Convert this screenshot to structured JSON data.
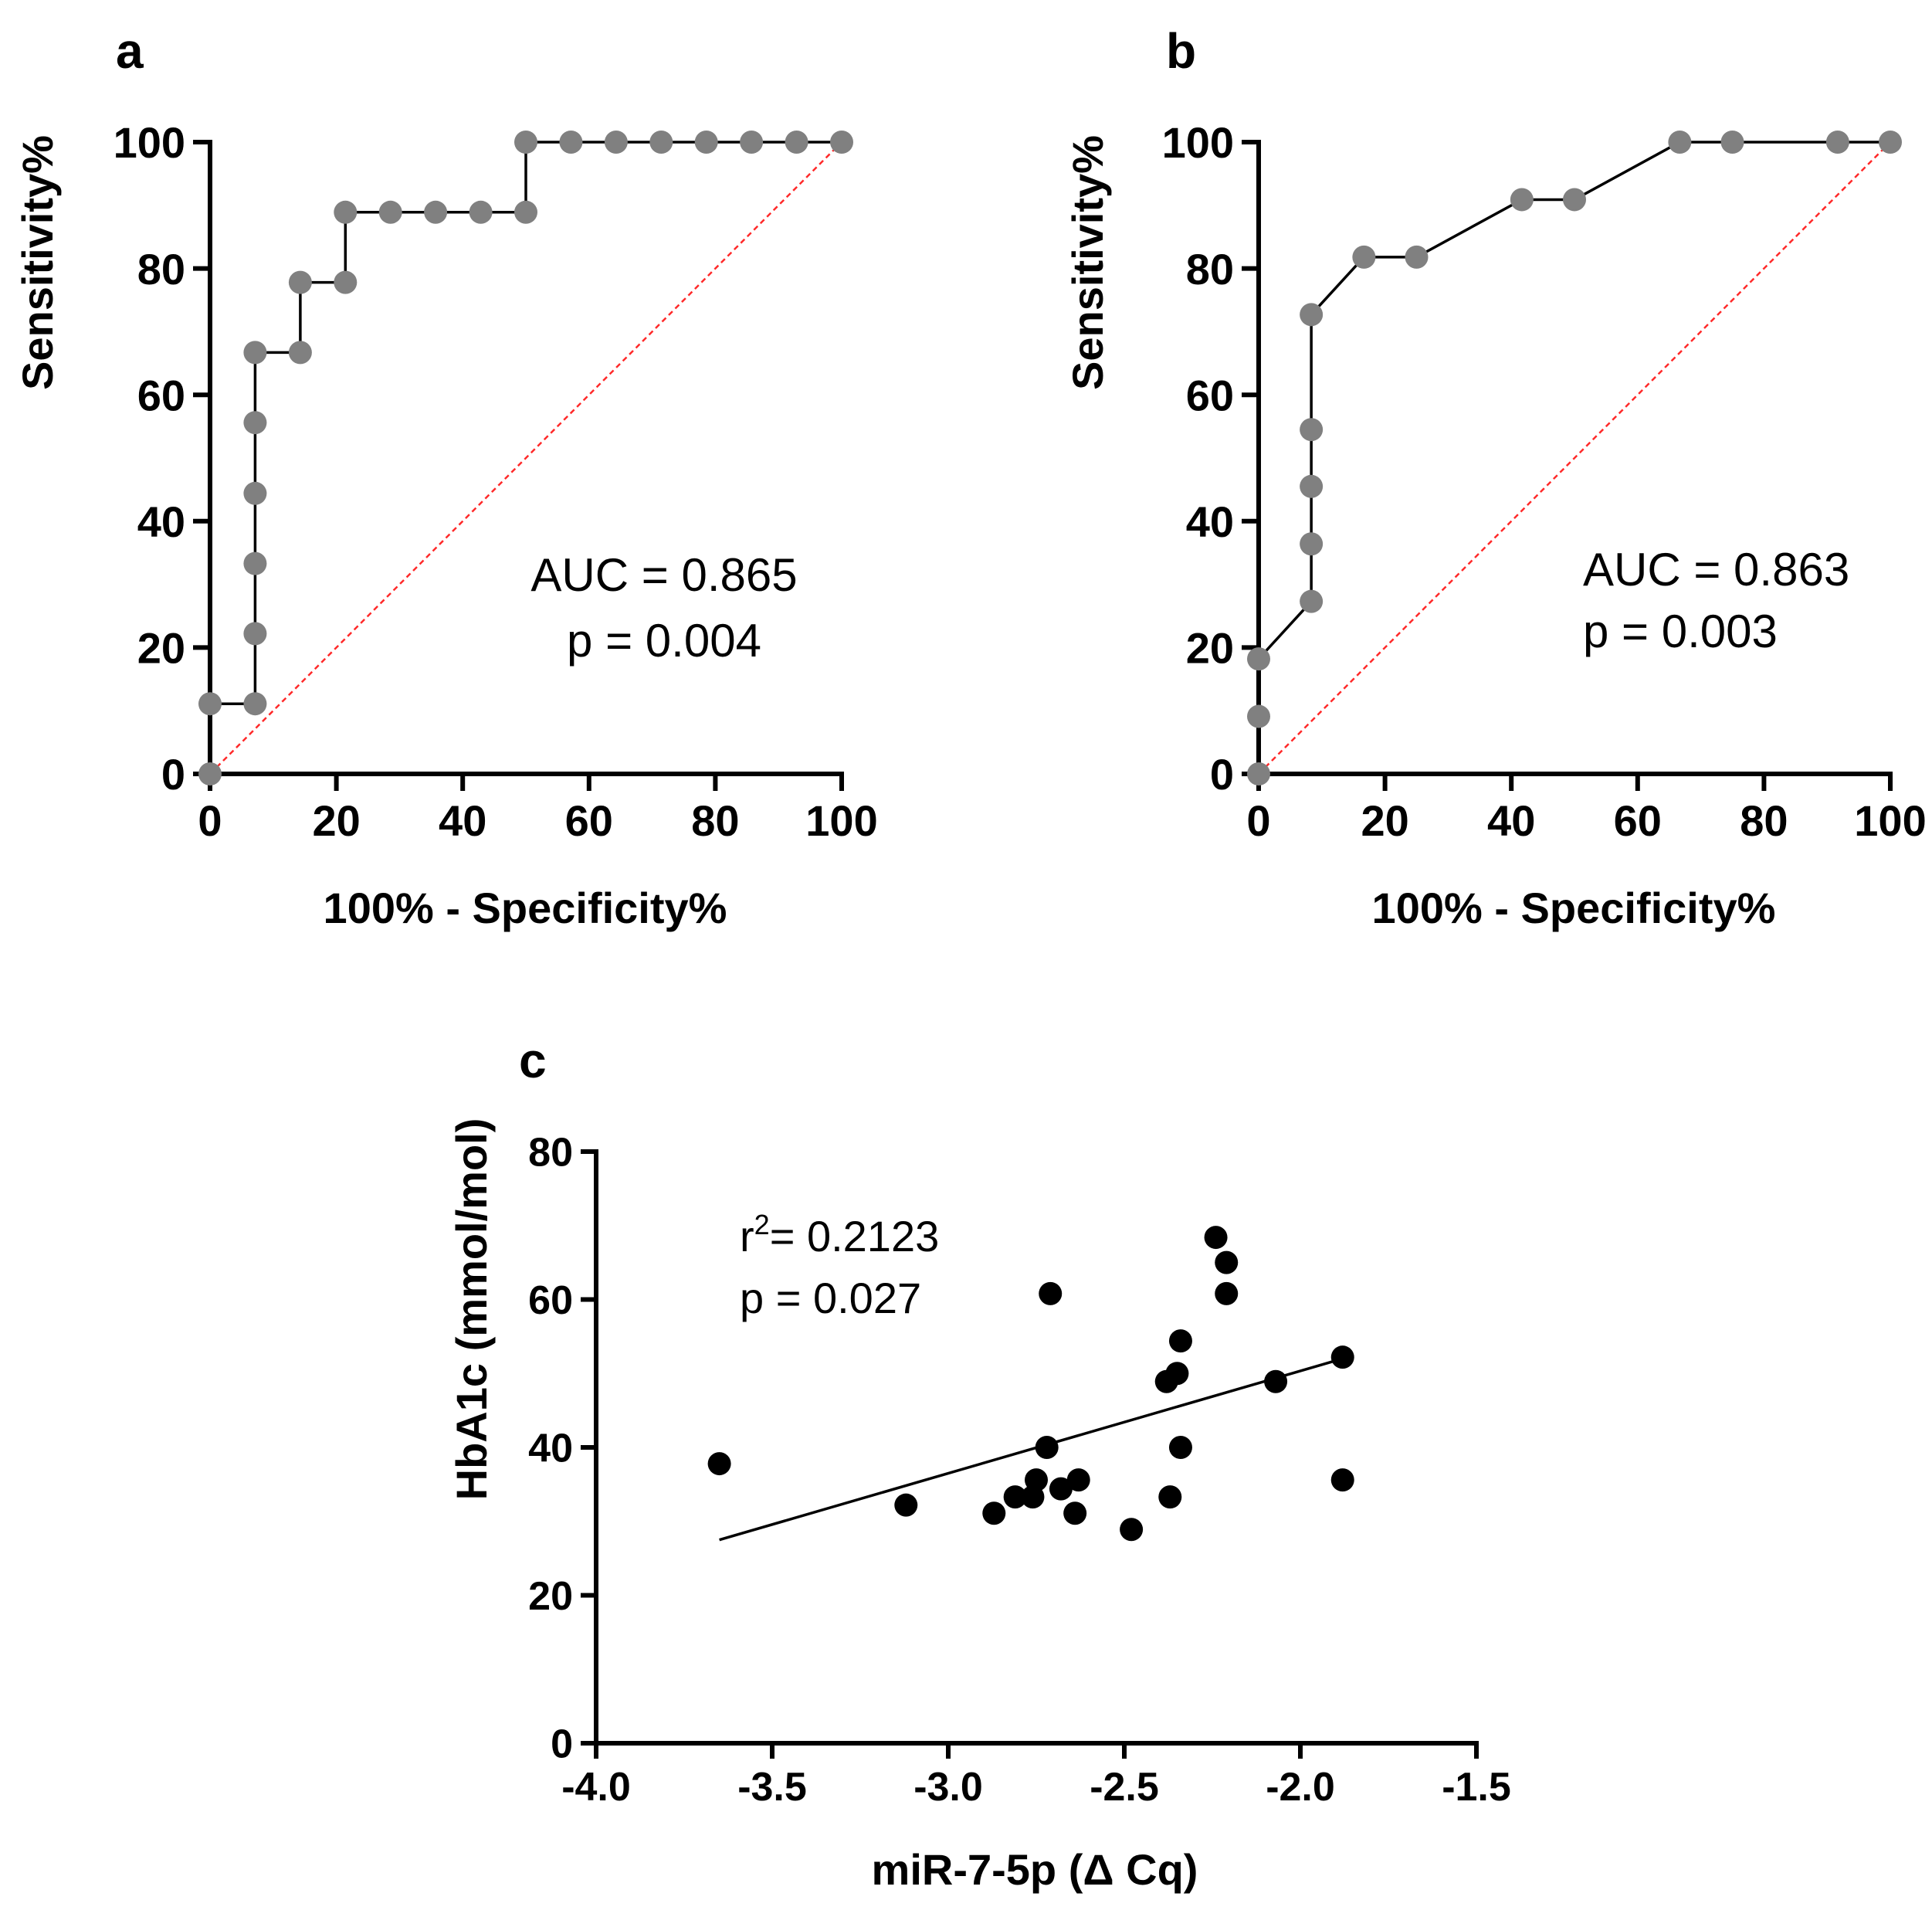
{
  "figure": {
    "panel_labels": [
      "a",
      "b",
      "c"
    ]
  },
  "chart_data": [
    {
      "type": "line",
      "panel": "a",
      "xlabel": "100% - Specificity%",
      "ylabel": "Sensitivity%",
      "xlim": [
        0,
        100
      ],
      "ylim": [
        0,
        100
      ],
      "xticks": [
        "0",
        "20",
        "40",
        "60",
        "80",
        "100"
      ],
      "yticks": [
        "0",
        "20",
        "40",
        "60",
        "80",
        "100"
      ],
      "step": true,
      "series": [
        {
          "name": "ROC",
          "x": [
            0,
            0,
            7.14,
            7.14,
            7.14,
            7.14,
            7.14,
            7.14,
            14.29,
            14.29,
            21.43,
            21.43,
            28.57,
            35.71,
            42.86,
            50,
            50,
            57.14,
            64.29,
            71.43,
            78.57,
            85.71,
            92.86,
            100
          ],
          "y": [
            0,
            11.1,
            11.1,
            22.2,
            33.3,
            44.4,
            55.6,
            66.7,
            66.7,
            77.8,
            77.8,
            88.9,
            88.9,
            88.9,
            88.9,
            88.9,
            100,
            100,
            100,
            100,
            100,
            100,
            100,
            100
          ]
        }
      ],
      "reference_line": {
        "x": [
          0,
          100
        ],
        "y": [
          0,
          100
        ],
        "color": "#ff2a2a"
      },
      "annotation_lines": [
        "AUC = 0.865",
        "p = 0.004"
      ]
    },
    {
      "type": "line",
      "panel": "b",
      "xlabel": "100% - Specificity%",
      "ylabel": "Sensitivity%",
      "xlim": [
        0,
        100
      ],
      "ylim": [
        0,
        100
      ],
      "xticks": [
        "0",
        "20",
        "40",
        "60",
        "80",
        "100"
      ],
      "yticks": [
        "0",
        "20",
        "40",
        "60",
        "80",
        "100"
      ],
      "step": false,
      "series": [
        {
          "name": "ROC",
          "x": [
            0,
            0,
            0,
            8.33,
            8.33,
            8.33,
            8.33,
            8.33,
            16.67,
            25,
            41.67,
            50,
            66.67,
            75,
            91.67,
            100
          ],
          "y": [
            0,
            9.1,
            18.2,
            27.3,
            36.4,
            45.5,
            54.5,
            72.7,
            81.8,
            81.8,
            90.9,
            90.9,
            100,
            100,
            100,
            100
          ]
        }
      ],
      "reference_line": {
        "x": [
          0,
          100
        ],
        "y": [
          0,
          100
        ],
        "color": "#ff2a2a"
      },
      "annotation_lines": [
        "AUC = 0.863",
        "p = 0.003"
      ]
    },
    {
      "type": "scatter",
      "panel": "c",
      "xlabel": "miR-7-5p (Δ Cq)",
      "ylabel": "HbA1c (mmol/mol)",
      "xlim": [
        -4.0,
        -1.5
      ],
      "ylim": [
        0,
        80
      ],
      "xticks": [
        "-4.0",
        "-3.5",
        "-3.0",
        "-2.5",
        "-2.0",
        "-1.5"
      ],
      "yticks": [
        "0",
        "20",
        "40",
        "60",
        "80"
      ],
      "series": [
        {
          "name": "samples",
          "x": [
            -3.65,
            -3.12,
            -2.87,
            -2.81,
            -2.76,
            -2.75,
            -2.72,
            -2.71,
            -2.68,
            -2.64,
            -2.63,
            -2.48,
            -2.38,
            -2.37,
            -2.35,
            -2.34,
            -2.34,
            -2.24,
            -2.21,
            -2.21,
            -2.07,
            -1.88,
            -1.88
          ],
          "y": [
            37.8,
            32.2,
            31.1,
            33.3,
            33.3,
            35.6,
            40.0,
            60.8,
            34.4,
            31.1,
            35.6,
            28.9,
            48.9,
            33.3,
            50.0,
            54.4,
            40.0,
            68.4,
            65.0,
            60.8,
            48.9,
            52.2,
            35.6
          ]
        }
      ],
      "fit_line": {
        "x": [
          -3.65,
          -1.88
        ],
        "y": [
          27.5,
          52.0
        ]
      },
      "annotation": {
        "r_label": "r",
        "superscript": "2",
        "r_value": "= 0.2123",
        "p_text": "p = 0.027"
      }
    }
  ]
}
